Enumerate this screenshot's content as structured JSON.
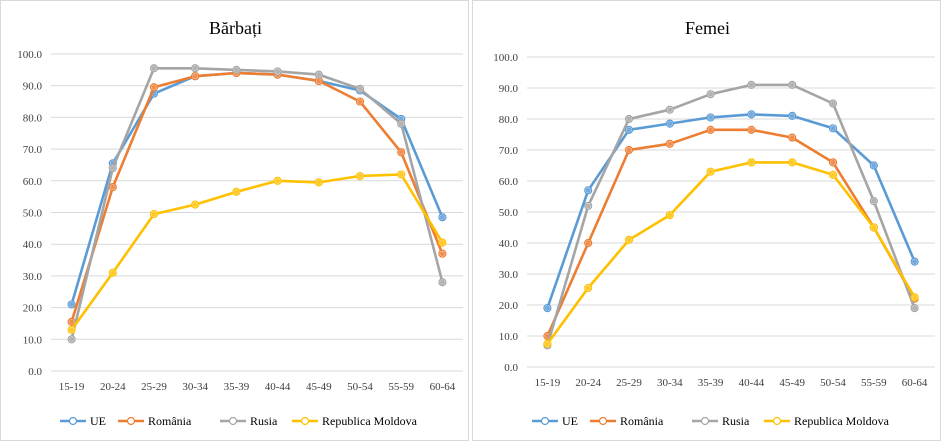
{
  "chart_data": [
    {
      "type": "line",
      "title": "Bărbați",
      "xlabel": "",
      "ylabel": "",
      "ylim": [
        0,
        100
      ],
      "y_ticks": [
        "0.0",
        "10.0",
        "20.0",
        "30.0",
        "40.0",
        "50.0",
        "60.0",
        "70.0",
        "80.0",
        "90.0",
        "100.0"
      ],
      "grid": true,
      "legend_position": "bottom",
      "categories": [
        "15-19",
        "20-24",
        "25-29",
        "30-34",
        "35-39",
        "40-44",
        "45-49",
        "50-54",
        "55-59",
        "60-64"
      ],
      "series": [
        {
          "name": "UE",
          "color": "#5B9BD5",
          "values": [
            21.0,
            65.5,
            87.5,
            93.0,
            94.0,
            93.5,
            91.5,
            88.5,
            79.5,
            48.5
          ]
        },
        {
          "name": "România",
          "color": "#ED7D31",
          "values": [
            15.5,
            58.0,
            89.5,
            93.0,
            94.0,
            93.5,
            91.5,
            85.0,
            69.0,
            37.0
          ]
        },
        {
          "name": "Rusia",
          "color": "#A5A5A5",
          "values": [
            10.0,
            64.0,
            95.5,
            95.5,
            95.0,
            94.5,
            93.5,
            89.0,
            78.0,
            28.0
          ]
        },
        {
          "name": "Republica Moldova",
          "color": "#FFC000",
          "values": [
            13.0,
            31.0,
            49.5,
            52.5,
            56.5,
            60.0,
            59.5,
            61.5,
            62.0,
            40.5
          ]
        }
      ]
    },
    {
      "type": "line",
      "title": "Femei",
      "xlabel": "",
      "ylabel": "",
      "ylim": [
        0,
        100
      ],
      "y_ticks": [
        "0.0",
        "10.0",
        "20.0",
        "30.0",
        "40.0",
        "50.0",
        "60.0",
        "70.0",
        "80.0",
        "90.0",
        "100.0"
      ],
      "grid": true,
      "legend_position": "bottom",
      "categories": [
        "15-19",
        "20-24",
        "25-29",
        "30-34",
        "35-39",
        "40-44",
        "45-49",
        "50-54",
        "55-59",
        "60-64"
      ],
      "series": [
        {
          "name": "UE",
          "color": "#5B9BD5",
          "values": [
            19.0,
            57.0,
            76.5,
            78.5,
            80.5,
            81.5,
            81.0,
            77.0,
            65.0,
            34.0
          ]
        },
        {
          "name": "România",
          "color": "#ED7D31",
          "values": [
            10.0,
            40.0,
            70.0,
            72.0,
            76.5,
            76.5,
            74.0,
            66.0,
            45.0,
            22.0
          ]
        },
        {
          "name": "Rusia",
          "color": "#A5A5A5",
          "values": [
            7.0,
            52.0,
            80.0,
            83.0,
            88.0,
            91.0,
            91.0,
            85.0,
            53.5,
            19.0
          ]
        },
        {
          "name": "Republica Moldova",
          "color": "#FFC000",
          "values": [
            7.5,
            25.5,
            41.0,
            49.0,
            63.0,
            66.0,
            66.0,
            62.0,
            45.0,
            22.5
          ]
        }
      ]
    }
  ]
}
